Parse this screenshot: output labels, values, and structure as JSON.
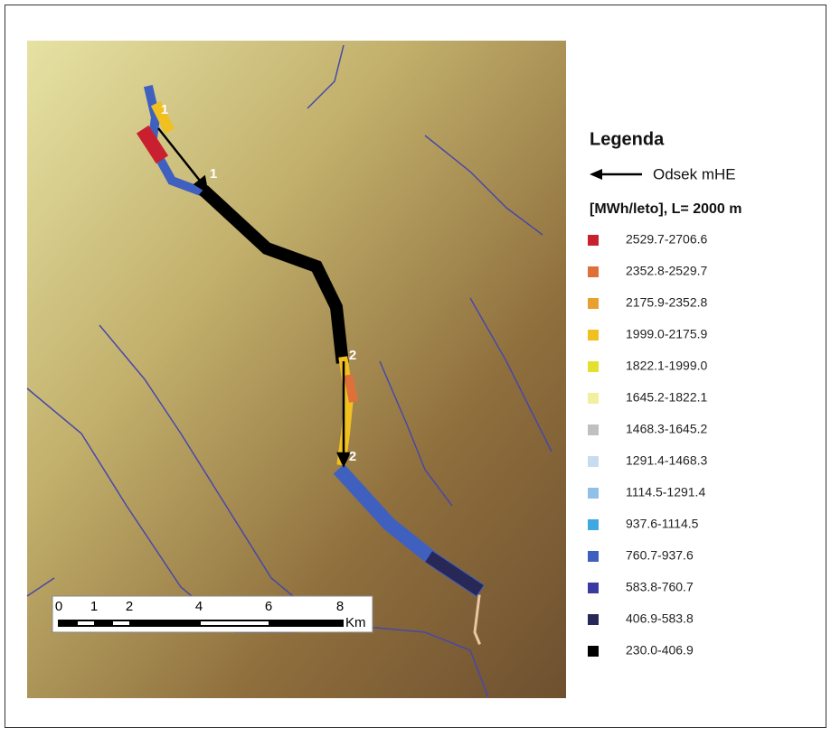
{
  "legend": {
    "title": "Legenda",
    "arrow_label": "Odsek mHE",
    "units": "[MWh/leto], L= 2000 m",
    "classes": [
      {
        "label": "2529.7-2706.6",
        "color": "#c8202e"
      },
      {
        "label": "2352.8-2529.7",
        "color": "#e0703a"
      },
      {
        "label": "2175.9-2352.8",
        "color": "#e8a030"
      },
      {
        "label": "1999.0-2175.9",
        "color": "#f0c020"
      },
      {
        "label": "1822.1-1999.0",
        "color": "#e4e030"
      },
      {
        "label": "1645.2-1822.1",
        "color": "#f0f0a0"
      },
      {
        "label": "1468.3-1645.2",
        "color": "#c0c0c0"
      },
      {
        "label": "1291.4-1468.3",
        "color": "#c8dcf0"
      },
      {
        "label": "1114.5-1291.4",
        "color": "#90c0e8"
      },
      {
        "label": "937.6-1114.5",
        "color": "#40a8e0"
      },
      {
        "label": "760.7-937.6",
        "color": "#4060c0"
      },
      {
        "label": "583.8-760.7",
        "color": "#3a3aa0"
      },
      {
        "label": "406.9-583.8",
        "color": "#282858"
      },
      {
        "label": "230.0-406.9",
        "color": "#000000"
      }
    ]
  },
  "scale_bar": {
    "ticks": [
      "0",
      "1",
      "2",
      "4",
      "6",
      "8"
    ],
    "unit": "Km"
  },
  "markers": [
    "1",
    "1",
    "2",
    "2"
  ]
}
